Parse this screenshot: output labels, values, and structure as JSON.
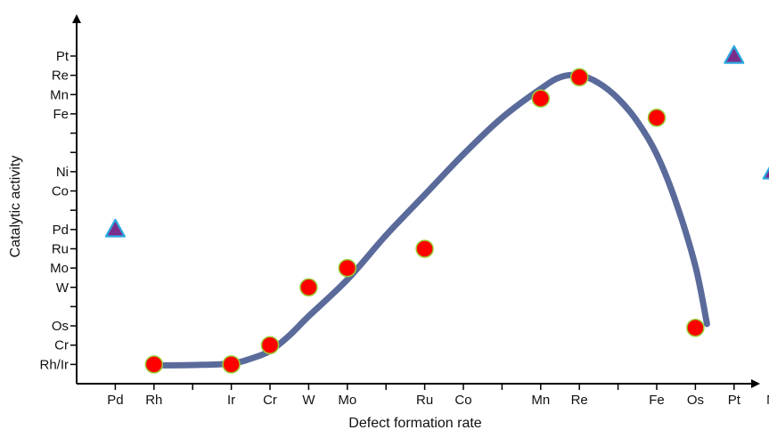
{
  "chart_data": {
    "type": "scatter",
    "title": "",
    "xlabel": "Defect formation rate",
    "ylabel": "Catalytic activity",
    "x_categories": [
      {
        "label": "Pd",
        "pos": 1
      },
      {
        "label": "Rh",
        "pos": 2
      },
      {
        "label": "Ir",
        "pos": 4
      },
      {
        "label": "Cr",
        "pos": 5
      },
      {
        "label": "W",
        "pos": 6
      },
      {
        "label": "Mo",
        "pos": 7
      },
      {
        "label": "Ru",
        "pos": 9
      },
      {
        "label": "Co",
        "pos": 10
      },
      {
        "label": "Mn",
        "pos": 12
      },
      {
        "label": "Re",
        "pos": 13
      },
      {
        "label": "Fe",
        "pos": 15
      },
      {
        "label": "Os",
        "pos": 16
      },
      {
        "label": "Pt",
        "pos": 17
      },
      {
        "label": "Ni",
        "pos": 18
      }
    ],
    "x_minor_ticks": [
      3,
      8,
      11,
      14
    ],
    "y_categories": [
      {
        "label": "Rh/Ir",
        "pos": 1
      },
      {
        "label": "Cr",
        "pos": 2
      },
      {
        "label": "Os",
        "pos": 3
      },
      {
        "label": "W",
        "pos": 5
      },
      {
        "label": "Mo",
        "pos": 6
      },
      {
        "label": "Ru",
        "pos": 7
      },
      {
        "label": "Pd",
        "pos": 8
      },
      {
        "label": "Co",
        "pos": 10
      },
      {
        "label": "Ni",
        "pos": 11
      },
      {
        "label": "Fe",
        "pos": 14
      },
      {
        "label": "Mn",
        "pos": 15
      },
      {
        "label": "Re",
        "pos": 16
      },
      {
        "label": "Pt",
        "pos": 17
      }
    ],
    "y_minor_ticks": [
      4,
      9,
      12,
      13
    ],
    "xlim": [
      0,
      19
    ],
    "ylim": [
      0,
      18
    ],
    "grid": false,
    "series": [
      {
        "marker": "circle",
        "color": "#ff0000",
        "edge_color": "#9acd32",
        "points": [
          {
            "x": 2,
            "y": 1
          },
          {
            "x": 4,
            "y": 1
          },
          {
            "x": 5,
            "y": 2
          },
          {
            "x": 6,
            "y": 5
          },
          {
            "x": 7,
            "y": 6
          },
          {
            "x": 9,
            "y": 7
          },
          {
            "x": 12,
            "y": 14.8
          },
          {
            "x": 13,
            "y": 15.9
          },
          {
            "x": 15,
            "y": 13.8
          },
          {
            "x": 16,
            "y": 2.9
          }
        ]
      },
      {
        "marker": "triangle",
        "color": "#7b2d8b",
        "edge_color": "#29a8e0",
        "points": [
          {
            "x": 1,
            "y": 8
          },
          {
            "x": 17,
            "y": 17
          },
          {
            "x": 18,
            "y": 11
          }
        ]
      }
    ],
    "trend_curve": {
      "color": "#5a6a9a",
      "points": [
        [
          2,
          0.95
        ],
        [
          3,
          0.97
        ],
        [
          4,
          1.05
        ],
        [
          4.5,
          1.3
        ],
        [
          5,
          1.7
        ],
        [
          5.5,
          2.5
        ],
        [
          6,
          3.5
        ],
        [
          7,
          5.4
        ],
        [
          8,
          7.7
        ],
        [
          9,
          9.8
        ],
        [
          10,
          11.9
        ],
        [
          11,
          13.8
        ],
        [
          12,
          15.3
        ],
        [
          12.5,
          15.9
        ],
        [
          13,
          16.0
        ],
        [
          13.5,
          15.6
        ],
        [
          14,
          14.8
        ],
        [
          14.5,
          13.6
        ],
        [
          15,
          11.9
        ],
        [
          15.5,
          9.4
        ],
        [
          16,
          6.1
        ],
        [
          16.3,
          3.1
        ]
      ]
    }
  }
}
